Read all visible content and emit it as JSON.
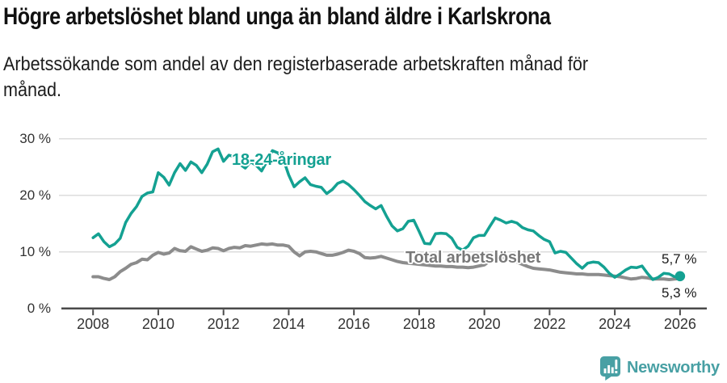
{
  "header": {
    "title": "Högre arbetslöshet bland unga än bland äldre i Karlskrona",
    "subtitle_line1": "Arbetssökande som andel av den registerbaserade arbetskraften månad för",
    "subtitle_line2": "månad."
  },
  "chart_data": {
    "type": "line",
    "title": "Högre arbetslöshet bland unga än bland äldre i Karlskrona",
    "subtitle": "Arbetssökande som andel av den registerbaserade arbetskraften månad för månad.",
    "unit": "%",
    "grid": true,
    "legend": "inline-labels",
    "x_start_year": 2008,
    "x_step_months": 2,
    "x_end_year": 2026,
    "xlim": [
      2007.0,
      2026.8
    ],
    "ylim": [
      0,
      31
    ],
    "x_tick_labels": [
      "2008",
      "2010",
      "2012",
      "2014",
      "2016",
      "2018",
      "2020",
      "2022",
      "2024",
      "2026"
    ],
    "y_tick_values": [
      0,
      10,
      20,
      30
    ],
    "y_tick_labels": [
      "0 %",
      "10 %",
      "20 %",
      "30 %"
    ],
    "series": [
      {
        "name": "18-24-åringar",
        "inline_label": "18-24-åringar",
        "color": "#14a192",
        "label_color": "#14a192",
        "end_label": "5,7 %",
        "end_value": 5.7,
        "end_dot": true,
        "values": [
          12.5,
          13.2,
          11.8,
          10.9,
          11.4,
          12.4,
          15.2,
          16.8,
          18.0,
          19.8,
          20.4,
          20.6,
          24.0,
          23.2,
          21.8,
          24.0,
          25.6,
          24.4,
          25.9,
          25.3,
          24.0,
          25.5,
          27.7,
          28.2,
          26.0,
          27.1,
          26.8,
          25.5,
          24.8,
          25.9,
          25.3,
          24.3,
          26.0,
          27.9,
          27.5,
          26.4,
          23.6,
          21.5,
          22.4,
          23.1,
          21.9,
          21.6,
          21.4,
          20.3,
          21.0,
          22.1,
          22.5,
          21.9,
          21.0,
          20.0,
          18.9,
          18.2,
          17.6,
          18.2,
          16.3,
          14.6,
          13.7,
          14.1,
          15.4,
          15.6,
          13.6,
          11.5,
          11.4,
          13.2,
          13.3,
          13.2,
          12.4,
          10.8,
          10.3,
          11.0,
          12.5,
          12.9,
          12.9,
          14.5,
          16.0,
          15.6,
          15.1,
          15.4,
          15.1,
          14.3,
          13.9,
          13.7,
          12.9,
          12.2,
          11.8,
          9.8,
          10.1,
          9.9,
          8.9,
          7.9,
          7.1,
          8.0,
          8.2,
          8.1,
          7.3,
          6.2,
          5.5,
          6.1,
          6.8,
          7.3,
          7.2,
          7.5,
          6.2,
          5.1,
          5.5,
          6.2,
          6.1,
          5.6,
          5.7
        ]
      },
      {
        "name": "Total arbetslöshet",
        "inline_label": "Total arbetslöshet",
        "color": "#8c8c8c",
        "label_color": "#787878",
        "end_label": "5,3 %",
        "end_value": 5.3,
        "end_dot": false,
        "values": [
          5.6,
          5.6,
          5.3,
          5.1,
          5.6,
          6.5,
          7.1,
          7.8,
          8.1,
          8.7,
          8.6,
          9.4,
          9.9,
          9.6,
          9.8,
          10.6,
          10.2,
          10.1,
          10.9,
          10.5,
          10.1,
          10.3,
          10.7,
          10.6,
          10.2,
          10.6,
          10.8,
          10.7,
          11.1,
          11.0,
          11.2,
          11.4,
          11.3,
          11.4,
          11.2,
          11.2,
          11.0,
          10.0,
          9.3,
          10.0,
          10.1,
          10.0,
          9.7,
          9.4,
          9.4,
          9.6,
          9.9,
          10.3,
          10.1,
          9.7,
          9.0,
          8.9,
          9.0,
          9.2,
          8.9,
          8.6,
          8.3,
          8.1,
          8.0,
          7.9,
          7.8,
          7.7,
          7.6,
          7.5,
          7.5,
          7.4,
          7.4,
          7.3,
          7.3,
          7.2,
          7.3,
          7.5,
          7.7,
          8.4,
          8.9,
          9.0,
          8.9,
          8.6,
          8.2,
          7.8,
          7.4,
          7.1,
          7.0,
          6.9,
          6.8,
          6.6,
          6.4,
          6.3,
          6.2,
          6.1,
          6.1,
          6.0,
          6.0,
          6.0,
          5.9,
          5.8,
          5.7,
          5.6,
          5.4,
          5.2,
          5.3,
          5.5,
          5.4,
          5.2,
          5.2,
          5.2,
          5.1,
          5.2,
          5.3
        ]
      }
    ],
    "colors": {
      "grid": "#dcdcdc",
      "axis": "#4a4a4a",
      "tick_text": "#333333",
      "end_label_text": "#1a1a1a"
    }
  },
  "footer": {
    "brand": "Newsworthy",
    "icon": "bar-chart-bubble-icon",
    "color": "#48a0a4"
  }
}
